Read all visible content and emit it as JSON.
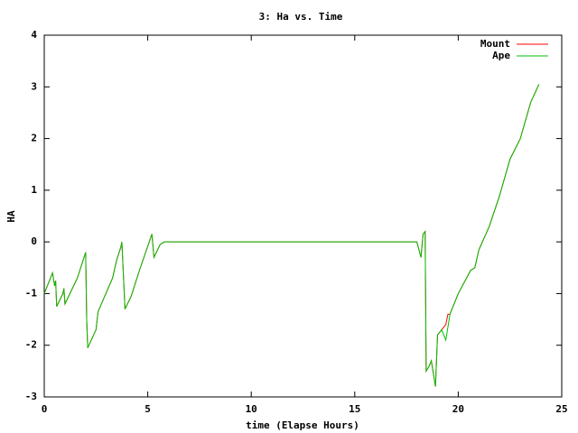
{
  "chart_data": {
    "type": "line",
    "title": "3: Ha vs. Time",
    "x_label": "time (Elapse Hours)",
    "y_label": "HA",
    "x": [
      0,
      0.3,
      0.4,
      0.5,
      0.55,
      0.6,
      0.9,
      0.95,
      1.0,
      1.3,
      1.6,
      2.0,
      2.05,
      2.1,
      2.5,
      2.6,
      3.3,
      3.5,
      3.7,
      3.75,
      3.9,
      4.2,
      4.6,
      4.9,
      5.2,
      5.3,
      5.6,
      5.8,
      18.0,
      18.2,
      18.3,
      18.4,
      18.45,
      18.6,
      18.7,
      18.9,
      19.0,
      19.2,
      19.4,
      19.5,
      19.6,
      19.7,
      20.0,
      20.6,
      20.8,
      21.0,
      21.5,
      22.0,
      22.5,
      23.0,
      23.5,
      23.9
    ],
    "series": [
      {
        "name": "Mount",
        "color": "#ff0000",
        "values": [
          -1.0,
          -0.7,
          -0.6,
          -0.85,
          -0.75,
          -1.25,
          -1.0,
          -0.9,
          -1.2,
          -0.95,
          -0.7,
          -0.2,
          -1.5,
          -2.05,
          -1.7,
          -1.35,
          -0.7,
          -0.35,
          -0.1,
          0.0,
          -1.3,
          -1.05,
          -0.55,
          -0.2,
          0.15,
          -0.3,
          -0.05,
          0.0,
          0.0,
          -0.3,
          0.15,
          0.2,
          -2.5,
          -2.4,
          -2.3,
          -2.8,
          -1.8,
          -1.7,
          -1.6,
          -1.4,
          -1.4,
          -1.3,
          -1.0,
          -0.55,
          -0.5,
          -0.15,
          0.3,
          0.9,
          1.6,
          2.0,
          2.7,
          3.05
        ]
      },
      {
        "name": "Ape",
        "color": "#00c000",
        "values": [
          -1.0,
          -0.7,
          -0.6,
          -0.85,
          -0.75,
          -1.25,
          -1.0,
          -0.9,
          -1.2,
          -0.95,
          -0.7,
          -0.2,
          -1.5,
          -2.05,
          -1.7,
          -1.35,
          -0.7,
          -0.35,
          -0.1,
          0.0,
          -1.3,
          -1.05,
          -0.55,
          -0.2,
          0.15,
          -0.3,
          -0.05,
          0.0,
          0.0,
          -0.3,
          0.15,
          0.2,
          -2.5,
          -2.4,
          -2.3,
          -2.8,
          -1.8,
          -1.7,
          -1.9,
          -1.65,
          -1.4,
          -1.3,
          -1.0,
          -0.55,
          -0.5,
          -0.15,
          0.3,
          0.9,
          1.6,
          2.0,
          2.7,
          3.05
        ]
      }
    ],
    "xlim": [
      0,
      25
    ],
    "xticks": [
      0,
      5,
      10,
      15,
      20,
      25
    ],
    "ylim": [
      -3,
      4
    ],
    "yticks": [
      -3,
      -2,
      -1,
      0,
      1,
      2,
      3,
      4
    ],
    "legend": "top-right"
  }
}
